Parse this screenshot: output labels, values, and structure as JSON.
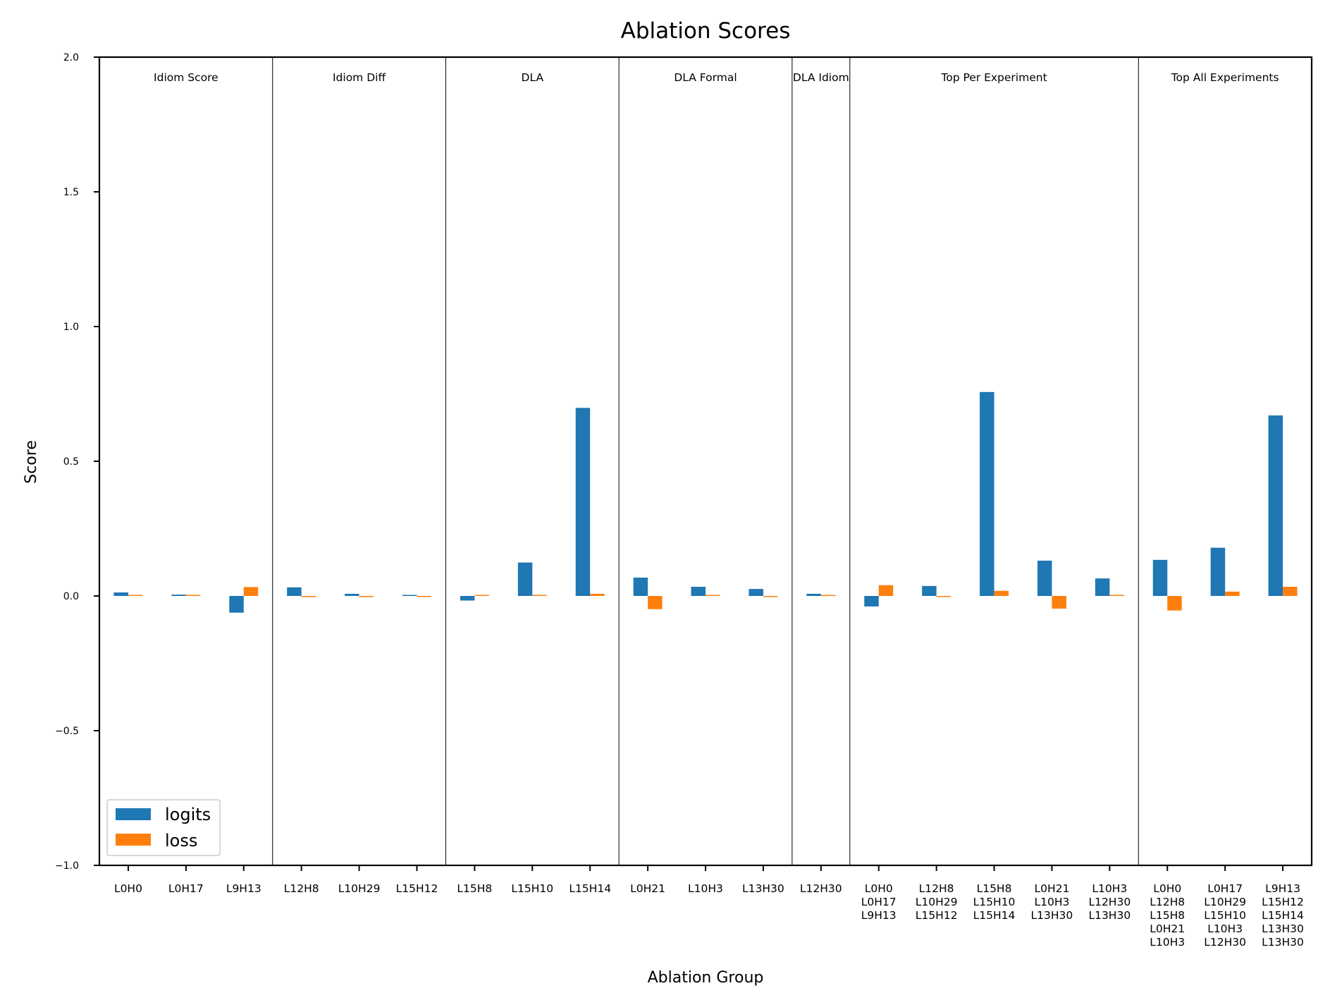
{
  "chart_data": {
    "type": "bar",
    "title": "Ablation Scores",
    "xlabel": "Ablation Group",
    "ylabel": "Score",
    "ylim": [
      -1.0,
      2.0
    ],
    "yticks": [
      -1.0,
      -0.5,
      0.0,
      0.5,
      1.0,
      1.5,
      2.0
    ],
    "ytick_labels": [
      "−1.0",
      "−0.5",
      "0.0",
      "0.5",
      "1.0",
      "1.5",
      "2.0"
    ],
    "legend": {
      "placement": "lower-left",
      "entries": [
        "logits",
        "loss"
      ]
    },
    "groups": [
      {
        "name": "Idiom Score",
        "start": 0,
        "count": 3
      },
      {
        "name": "Idiom Diff",
        "start": 3,
        "count": 3
      },
      {
        "name": "DLA",
        "start": 6,
        "count": 3
      },
      {
        "name": "DLA Formal",
        "start": 9,
        "count": 3
      },
      {
        "name": "DLA Idiom",
        "start": 12,
        "count": 1
      },
      {
        "name": "Top Per Experiment",
        "start": 13,
        "count": 5
      },
      {
        "name": "Top All Experiments",
        "start": 18,
        "count": 3
      }
    ],
    "categories": [
      [
        "L0H0"
      ],
      [
        "L0H17"
      ],
      [
        "L9H13"
      ],
      [
        "L12H8"
      ],
      [
        "L10H29"
      ],
      [
        "L15H12"
      ],
      [
        "L15H8"
      ],
      [
        "L15H10"
      ],
      [
        "L15H14"
      ],
      [
        "L0H21"
      ],
      [
        "L10H3"
      ],
      [
        "L13H30"
      ],
      [
        "L12H30"
      ],
      [
        "L0H0",
        "L0H17",
        "L9H13"
      ],
      [
        "L12H8",
        "L10H29",
        "L15H12"
      ],
      [
        "L15H8",
        "L15H10",
        "L15H14"
      ],
      [
        "L0H21",
        "L10H3",
        "L13H30"
      ],
      [
        "L10H3",
        "L12H30",
        "L13H30"
      ],
      [
        "L0H0",
        "L12H8",
        "L15H8",
        "L0H21",
        "L10H3"
      ],
      [
        "L0H17",
        "L10H29",
        "L15H10",
        "L10H3",
        "L12H30"
      ],
      [
        "L9H13",
        "L15H12",
        "L15H14",
        "L13H30",
        "L13H30"
      ]
    ],
    "series": [
      {
        "name": "logits",
        "color": "#1f77b4",
        "values": [
          0.013,
          0.005,
          -0.062,
          0.032,
          0.008,
          0.0,
          -0.017,
          0.124,
          0.698,
          0.068,
          0.034,
          0.026,
          0.008,
          -0.039,
          0.037,
          0.757,
          0.131,
          0.065,
          0.134,
          0.179,
          0.67
        ]
      },
      {
        "name": "loss",
        "color": "#ff7f0e",
        "values": [
          0.003,
          0.003,
          0.033,
          -0.002,
          -0.002,
          -0.002,
          0.0,
          0.003,
          0.008,
          -0.049,
          0.0,
          -0.004,
          0.0,
          0.04,
          -0.002,
          0.019,
          -0.047,
          0.002,
          -0.054,
          0.016,
          0.034
        ]
      }
    ]
  }
}
